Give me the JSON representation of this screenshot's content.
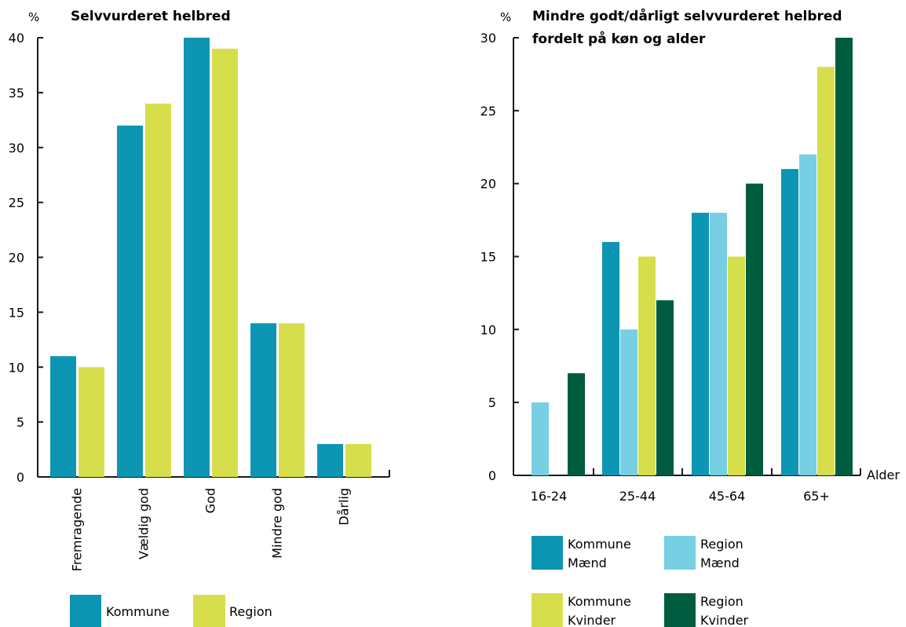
{
  "colors": {
    "kommune": "#0d95b4",
    "region": "#d6df4b",
    "region_maend": "#76cfe2",
    "region_kvinder": "#005c3f",
    "axis": "#1a1a1a"
  },
  "chart_data": [
    {
      "type": "bar",
      "title": "Selvvurderet helbred",
      "unit": "%",
      "ylim": [
        0,
        40
      ],
      "yticks": [
        0,
        5,
        10,
        15,
        20,
        25,
        30,
        35,
        40
      ],
      "categories": [
        "Fremragende",
        "Vældig god",
        "God",
        "Mindre god",
        "Dårlig"
      ],
      "series": [
        {
          "name": "Kommune",
          "values": [
            11,
            32,
            40,
            14,
            3
          ]
        },
        {
          "name": "Region",
          "values": [
            10,
            34,
            39,
            14,
            3
          ]
        }
      ],
      "legend": [
        "Kommune",
        "Region"
      ]
    },
    {
      "type": "bar",
      "title_line1": "Mindre godt/dårligt selvvurderet helbred",
      "title_line2": "fordelt på køn og alder",
      "unit": "%",
      "xlabel": "Alder",
      "ylim": [
        0,
        30
      ],
      "yticks": [
        0,
        5,
        10,
        15,
        20,
        25,
        30
      ],
      "categories": [
        "16-24",
        "25-44",
        "45-64",
        "65+"
      ],
      "series": [
        {
          "name_line1": "Kommune",
          "name_line2": "Mænd",
          "values": [
            0,
            16,
            18,
            21
          ]
        },
        {
          "name_line1": "Region",
          "name_line2": "Mænd",
          "values": [
            5,
            10,
            18,
            22
          ]
        },
        {
          "name_line1": "Kommune",
          "name_line2": "Kvinder",
          "values": [
            0,
            15,
            15,
            28
          ]
        },
        {
          "name_line1": "Region",
          "name_line2": "Kvinder",
          "values": [
            7,
            12,
            20,
            30
          ]
        }
      ]
    }
  ]
}
